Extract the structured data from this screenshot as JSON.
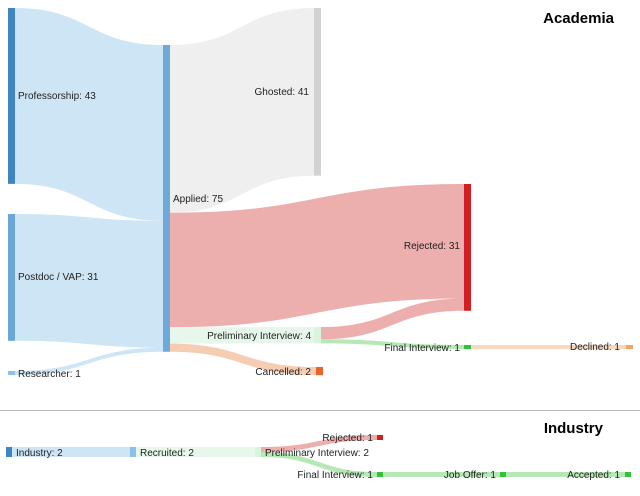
{
  "sections": [
    {
      "id": "academia",
      "title": "Academia",
      "nodes": [
        {
          "id": "professorship",
          "label": "Professorship: 43",
          "color": "#3f86c0"
        },
        {
          "id": "postdoc",
          "label": "Postdoc / VAP: 31",
          "color": "#6aa7d6"
        },
        {
          "id": "researcher",
          "label": "Researcher: 1",
          "color": "#8fc0e6"
        },
        {
          "id": "applied",
          "label": "Applied: 75",
          "color": "#6ea9d8"
        },
        {
          "id": "ghosted",
          "label": "Ghosted: 41",
          "color": "#d2d2d2"
        },
        {
          "id": "rejected",
          "label": "Rejected: 31",
          "color": "#d11f24"
        },
        {
          "id": "prelim",
          "label": "Preliminary Interview: 4",
          "color": "#d9f5df"
        },
        {
          "id": "cancelled",
          "label": "Cancelled: 2",
          "color": "#e8642a"
        },
        {
          "id": "final",
          "label": "Final Interview: 1",
          "color": "#33c13a"
        },
        {
          "id": "declined",
          "label": "Declined: 1",
          "color": "#f0a46a"
        }
      ],
      "links": [
        {
          "source": "professorship",
          "target": "applied",
          "value": 43,
          "color": "#c5e0f3"
        },
        {
          "source": "postdoc",
          "target": "applied",
          "value": 31,
          "color": "#c5e0f3"
        },
        {
          "source": "researcher",
          "target": "applied",
          "value": 1,
          "color": "#c5e0f3"
        },
        {
          "source": "applied",
          "target": "ghosted",
          "value": 41,
          "color": "#ececec"
        },
        {
          "source": "applied",
          "target": "rejected",
          "value": 28,
          "color": "#eaa0a0"
        },
        {
          "source": "applied",
          "target": "prelim",
          "value": 4,
          "color": "#e3f6e8"
        },
        {
          "source": "applied",
          "target": "cancelled",
          "value": 2,
          "color": "#f5c3a4"
        },
        {
          "source": "prelim",
          "target": "rejected",
          "value": 3,
          "color": "#eaa0a0"
        },
        {
          "source": "prelim",
          "target": "final",
          "value": 1,
          "color": "#a8e4a8"
        },
        {
          "source": "final",
          "target": "declined",
          "value": 1,
          "color": "#f7d2b4"
        }
      ]
    },
    {
      "id": "industry",
      "title": "Industry",
      "nodes": [
        {
          "id": "ind_industry",
          "label": "Industry: 2",
          "color": "#3f86c0"
        },
        {
          "id": "ind_recruited",
          "label": "Recruited: 2",
          "color": "#8cc0e8"
        },
        {
          "id": "ind_prelim",
          "label": "Preliminary Interview: 2",
          "color": "#d9f5df"
        },
        {
          "id": "ind_rejected",
          "label": "Rejected: 1",
          "color": "#d11f24"
        },
        {
          "id": "ind_final",
          "label": "Final Interview: 1",
          "color": "#33c13a"
        },
        {
          "id": "ind_offer",
          "label": "Job Offer: 1",
          "color": "#33c13a"
        },
        {
          "id": "ind_accepted",
          "label": "Accepted: 1",
          "color": "#33c13a"
        }
      ],
      "links": [
        {
          "source": "ind_industry",
          "target": "ind_recruited",
          "value": 2,
          "color": "#c5e0f3"
        },
        {
          "source": "ind_recruited",
          "target": "ind_prelim",
          "value": 2,
          "color": "#e3f6e8"
        },
        {
          "source": "ind_prelim",
          "target": "ind_rejected",
          "value": 1,
          "color": "#eaa0a0"
        },
        {
          "source": "ind_prelim",
          "target": "ind_final",
          "value": 1,
          "color": "#a8e4a8"
        },
        {
          "source": "ind_final",
          "target": "ind_offer",
          "value": 1,
          "color": "#a8e4a8"
        },
        {
          "source": "ind_offer",
          "target": "ind_accepted",
          "value": 1,
          "color": "#a8e4a8"
        }
      ]
    }
  ]
}
